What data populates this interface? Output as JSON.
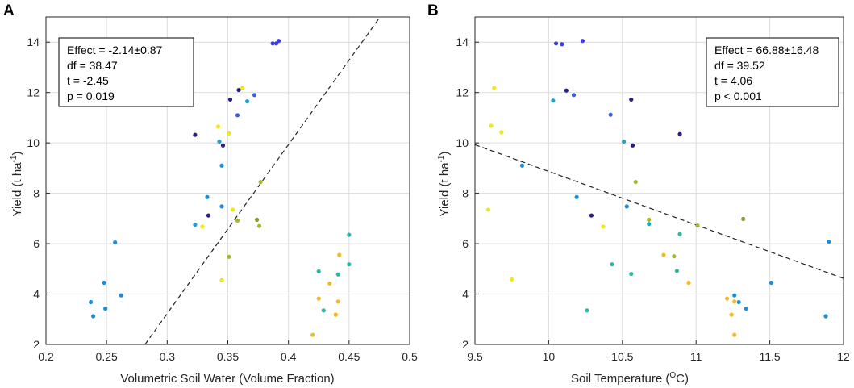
{
  "chart_data": [
    {
      "type": "scatter",
      "panel_label": "A",
      "title": "",
      "xlabel": "Volumetric Soil Water (Volume Fraction)",
      "ylabel_main": "Yield (t ha",
      "ylabel_sup": "-1",
      "ylabel_close": ")",
      "xlim": [
        0.2,
        0.5
      ],
      "ylim": [
        2,
        15
      ],
      "xticks": [
        0.2,
        0.25,
        0.3,
        0.35,
        0.4,
        0.45,
        0.5
      ],
      "xtick_labels": [
        "0.2",
        "0.25",
        "0.3",
        "0.35",
        "0.4",
        "0.45",
        "0.5"
      ],
      "yticks": [
        2,
        4,
        6,
        8,
        10,
        12,
        14
      ],
      "ytick_labels": [
        "2",
        "4",
        "6",
        "8",
        "10",
        "12",
        "14"
      ],
      "grid": true,
      "stats_position": "top-left",
      "stats": [
        "Effect = -2.14±0.87",
        "df = 38.47",
        "t = -2.45",
        "p = 0.019"
      ],
      "fit_line": {
        "x": [
          0.2817,
          0.4756
        ],
        "y": [
          2,
          15
        ]
      },
      "points": [
        {
          "x": 0.387,
          "y": 13.95,
          "color": "#3b3fe0"
        },
        {
          "x": 0.39,
          "y": 13.95,
          "color": "#3b3fe0"
        },
        {
          "x": 0.392,
          "y": 14.05,
          "color": "#3b3fe0"
        },
        {
          "x": 0.359,
          "y": 12.1,
          "color": "#2a1f86"
        },
        {
          "x": 0.362,
          "y": 12.18,
          "color": "#f0e816"
        },
        {
          "x": 0.352,
          "y": 11.72,
          "color": "#2a1f86"
        },
        {
          "x": 0.366,
          "y": 11.65,
          "color": "#19a7c9"
        },
        {
          "x": 0.372,
          "y": 11.9,
          "color": "#3b5ee0"
        },
        {
          "x": 0.358,
          "y": 11.1,
          "color": "#3b5ee0"
        },
        {
          "x": 0.323,
          "y": 10.32,
          "color": "#2a1f86"
        },
        {
          "x": 0.342,
          "y": 10.65,
          "color": "#f0e816"
        },
        {
          "x": 0.351,
          "y": 10.38,
          "color": "#f0e816"
        },
        {
          "x": 0.343,
          "y": 10.05,
          "color": "#19a7c9"
        },
        {
          "x": 0.346,
          "y": 9.9,
          "color": "#2a1f86"
        },
        {
          "x": 0.345,
          "y": 9.1,
          "color": "#1c8ed8"
        },
        {
          "x": 0.377,
          "y": 8.45,
          "color": "#a9b52a"
        },
        {
          "x": 0.333,
          "y": 7.85,
          "color": "#1c8ed8"
        },
        {
          "x": 0.345,
          "y": 7.48,
          "color": "#1c8ed8"
        },
        {
          "x": 0.354,
          "y": 7.35,
          "color": "#f0e816"
        },
        {
          "x": 0.334,
          "y": 7.12,
          "color": "#2a1f86"
        },
        {
          "x": 0.358,
          "y": 6.92,
          "color": "#a9b52a"
        },
        {
          "x": 0.374,
          "y": 6.95,
          "color": "#8a9830"
        },
        {
          "x": 0.323,
          "y": 6.75,
          "color": "#19a7c9"
        },
        {
          "x": 0.329,
          "y": 6.68,
          "color": "#f0e816"
        },
        {
          "x": 0.376,
          "y": 6.7,
          "color": "#a9b52a"
        },
        {
          "x": 0.45,
          "y": 6.35,
          "color": "#2ab9a0"
        },
        {
          "x": 0.257,
          "y": 6.05,
          "color": "#1c8ed8"
        },
        {
          "x": 0.351,
          "y": 5.48,
          "color": "#a9b52a"
        },
        {
          "x": 0.442,
          "y": 5.55,
          "color": "#f2b92a"
        },
        {
          "x": 0.45,
          "y": 5.18,
          "color": "#2ab9a0"
        },
        {
          "x": 0.425,
          "y": 4.9,
          "color": "#2ab9a0"
        },
        {
          "x": 0.441,
          "y": 4.78,
          "color": "#2ab9a0"
        },
        {
          "x": 0.345,
          "y": 4.55,
          "color": "#f0e816"
        },
        {
          "x": 0.434,
          "y": 4.42,
          "color": "#f2b92a"
        },
        {
          "x": 0.248,
          "y": 4.45,
          "color": "#1c8ed8"
        },
        {
          "x": 0.262,
          "y": 3.95,
          "color": "#1c8ed8"
        },
        {
          "x": 0.425,
          "y": 3.82,
          "color": "#f2b92a"
        },
        {
          "x": 0.441,
          "y": 3.7,
          "color": "#f2b92a"
        },
        {
          "x": 0.237,
          "y": 3.68,
          "color": "#1c8ed8"
        },
        {
          "x": 0.249,
          "y": 3.42,
          "color": "#1c8ed8"
        },
        {
          "x": 0.429,
          "y": 3.35,
          "color": "#2ab9a0"
        },
        {
          "x": 0.439,
          "y": 3.18,
          "color": "#f2b92a"
        },
        {
          "x": 0.239,
          "y": 3.12,
          "color": "#1c8ed8"
        },
        {
          "x": 0.42,
          "y": 2.38,
          "color": "#f2b92a"
        }
      ]
    },
    {
      "type": "scatter",
      "panel_label": "B",
      "title": "",
      "xlabel_main": "Soil Temperature (",
      "xlabel_sup": "O",
      "xlabel_close": "C)",
      "ylabel_main": "Yield (t ha",
      "ylabel_sup": "-1",
      "ylabel_close": ")",
      "xlim": [
        9.5,
        12
      ],
      "ylim": [
        2,
        15
      ],
      "xticks": [
        9.5,
        10,
        10.5,
        11,
        11.5,
        12
      ],
      "xtick_labels": [
        "9.5",
        "10",
        "10.5",
        "11",
        "11.5",
        "12"
      ],
      "yticks": [
        2,
        4,
        6,
        8,
        10,
        12,
        14
      ],
      "ytick_labels": [
        "2",
        "4",
        "6",
        "8",
        "10",
        "12",
        "14"
      ],
      "grid": true,
      "stats_position": "top-right",
      "stats": [
        "Effect = 66.88±16.48",
        "df = 39.52",
        "t = 4.06",
        "p < 0.001"
      ],
      "fit_line": {
        "x": [
          9.5,
          12
        ],
        "y": [
          9.93,
          4.62
        ]
      },
      "points": [
        {
          "x": 10.05,
          "y": 13.95,
          "color": "#3b3fe0"
        },
        {
          "x": 10.09,
          "y": 13.92,
          "color": "#3b3fe0"
        },
        {
          "x": 10.23,
          "y": 14.05,
          "color": "#3b3fe0"
        },
        {
          "x": 9.63,
          "y": 12.18,
          "color": "#f0e816"
        },
        {
          "x": 10.12,
          "y": 12.08,
          "color": "#2a1f86"
        },
        {
          "x": 10.17,
          "y": 11.9,
          "color": "#3b5ee0"
        },
        {
          "x": 10.03,
          "y": 11.68,
          "color": "#19a7c9"
        },
        {
          "x": 10.56,
          "y": 11.72,
          "color": "#2a1f86"
        },
        {
          "x": 10.42,
          "y": 11.12,
          "color": "#3b5ee0"
        },
        {
          "x": 9.61,
          "y": 10.68,
          "color": "#f0e816"
        },
        {
          "x": 9.68,
          "y": 10.42,
          "color": "#f0e816"
        },
        {
          "x": 10.89,
          "y": 10.35,
          "color": "#2a1f86"
        },
        {
          "x": 10.51,
          "y": 10.05,
          "color": "#19a7c9"
        },
        {
          "x": 10.57,
          "y": 9.9,
          "color": "#2a1f86"
        },
        {
          "x": 9.82,
          "y": 9.1,
          "color": "#1c8ed8"
        },
        {
          "x": 10.59,
          "y": 8.45,
          "color": "#a9b52a"
        },
        {
          "x": 10.19,
          "y": 7.85,
          "color": "#1c8ed8"
        },
        {
          "x": 10.53,
          "y": 7.48,
          "color": "#1c8ed8"
        },
        {
          "x": 9.59,
          "y": 7.35,
          "color": "#f0e816"
        },
        {
          "x": 10.29,
          "y": 7.12,
          "color": "#2a1f86"
        },
        {
          "x": 10.68,
          "y": 6.95,
          "color": "#a9b52a"
        },
        {
          "x": 11.32,
          "y": 6.98,
          "color": "#8a9830"
        },
        {
          "x": 10.68,
          "y": 6.78,
          "color": "#19a7c9"
        },
        {
          "x": 10.37,
          "y": 6.68,
          "color": "#f0e816"
        },
        {
          "x": 11.01,
          "y": 6.72,
          "color": "#a9b52a"
        },
        {
          "x": 10.89,
          "y": 6.38,
          "color": "#2ab9a0"
        },
        {
          "x": 11.9,
          "y": 6.08,
          "color": "#1c8ed8"
        },
        {
          "x": 10.78,
          "y": 5.55,
          "color": "#f2b92a"
        },
        {
          "x": 10.85,
          "y": 5.5,
          "color": "#a9b52a"
        },
        {
          "x": 10.43,
          "y": 5.18,
          "color": "#2ab9a0"
        },
        {
          "x": 10.87,
          "y": 4.92,
          "color": "#2ab9a0"
        },
        {
          "x": 10.56,
          "y": 4.8,
          "color": "#2ab9a0"
        },
        {
          "x": 9.75,
          "y": 4.58,
          "color": "#f0e816"
        },
        {
          "x": 10.95,
          "y": 4.45,
          "color": "#f2b92a"
        },
        {
          "x": 11.51,
          "y": 4.45,
          "color": "#1c8ed8"
        },
        {
          "x": 11.26,
          "y": 3.95,
          "color": "#1c8ed8"
        },
        {
          "x": 11.21,
          "y": 3.82,
          "color": "#f2b92a"
        },
        {
          "x": 11.26,
          "y": 3.7,
          "color": "#f2b92a"
        },
        {
          "x": 11.29,
          "y": 3.68,
          "color": "#1c8ed8"
        },
        {
          "x": 11.34,
          "y": 3.42,
          "color": "#1c8ed8"
        },
        {
          "x": 10.26,
          "y": 3.35,
          "color": "#2ab9a0"
        },
        {
          "x": 11.24,
          "y": 3.18,
          "color": "#f2b92a"
        },
        {
          "x": 11.88,
          "y": 3.12,
          "color": "#1c8ed8"
        },
        {
          "x": 11.26,
          "y": 2.38,
          "color": "#f2b92a"
        }
      ]
    }
  ]
}
